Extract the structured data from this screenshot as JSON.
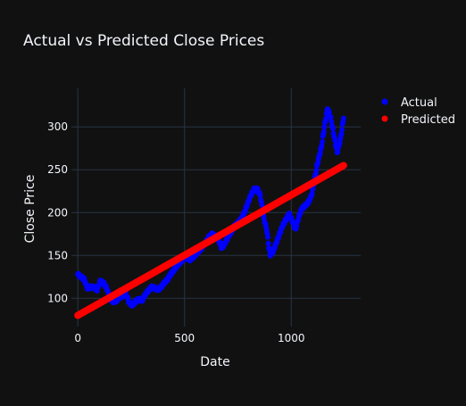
{
  "chart_data": {
    "type": "scatter",
    "title": "Actual vs Predicted Close Prices",
    "xlabel": "Date",
    "ylabel": "Close Price",
    "xlim": [
      -30,
      1325
    ],
    "ylim": [
      67,
      345
    ],
    "x_ticks": [
      0,
      500,
      1000
    ],
    "x_tick_labels": [
      "0",
      "500",
      "1000"
    ],
    "y_ticks": [
      100,
      150,
      200,
      250,
      300
    ],
    "y_tick_labels": [
      "100",
      "150",
      "200",
      "250",
      "300"
    ],
    "grid": true,
    "legend_position": "top-right",
    "colors": {
      "background": "#111111",
      "grid": "#283442",
      "text": "#f2f5fa",
      "actual": "#0000ff",
      "predicted": "#ff0000"
    },
    "series": [
      {
        "name": "Actual",
        "color": "#0000ff",
        "anchors": [
          [
            0,
            128
          ],
          [
            15,
            125
          ],
          [
            30,
            122
          ],
          [
            45,
            112
          ],
          [
            60,
            113
          ],
          [
            75,
            113
          ],
          [
            90,
            110
          ],
          [
            105,
            120
          ],
          [
            120,
            118
          ],
          [
            135,
            112
          ],
          [
            150,
            100
          ],
          [
            165,
            96
          ],
          [
            180,
            97
          ],
          [
            195,
            101
          ],
          [
            210,
            103
          ],
          [
            225,
            106
          ],
          [
            240,
            95
          ],
          [
            255,
            92
          ],
          [
            270,
            96
          ],
          [
            285,
            99
          ],
          [
            300,
            97
          ],
          [
            315,
            104
          ],
          [
            330,
            109
          ],
          [
            345,
            113
          ],
          [
            360,
            112
          ],
          [
            375,
            110
          ],
          [
            390,
            113
          ],
          [
            405,
            118
          ],
          [
            420,
            122
          ],
          [
            435,
            128
          ],
          [
            450,
            133
          ],
          [
            465,
            138
          ],
          [
            480,
            142
          ],
          [
            495,
            146
          ],
          [
            510,
            148
          ],
          [
            525,
            145
          ],
          [
            540,
            148
          ],
          [
            555,
            152
          ],
          [
            570,
            156
          ],
          [
            585,
            160
          ],
          [
            600,
            166
          ],
          [
            615,
            172
          ],
          [
            630,
            175
          ],
          [
            645,
            172
          ],
          [
            660,
            168
          ],
          [
            675,
            158
          ],
          [
            690,
            165
          ],
          [
            705,
            172
          ],
          [
            720,
            178
          ],
          [
            735,
            185
          ],
          [
            750,
            188
          ],
          [
            765,
            192
          ],
          [
            780,
            200
          ],
          [
            795,
            210
          ],
          [
            810,
            220
          ],
          [
            825,
            227
          ],
          [
            840,
            228
          ],
          [
            855,
            220
          ],
          [
            870,
            195
          ],
          [
            885,
            180
          ],
          [
            900,
            150
          ],
          [
            915,
            155
          ],
          [
            930,
            165
          ],
          [
            945,
            175
          ],
          [
            960,
            185
          ],
          [
            975,
            192
          ],
          [
            990,
            198
          ],
          [
            1005,
            190
          ],
          [
            1020,
            180
          ],
          [
            1035,
            195
          ],
          [
            1050,
            205
          ],
          [
            1065,
            208
          ],
          [
            1080,
            212
          ],
          [
            1095,
            220
          ],
          [
            1110,
            240
          ],
          [
            1125,
            260
          ],
          [
            1140,
            275
          ],
          [
            1155,
            300
          ],
          [
            1170,
            322
          ],
          [
            1185,
            310
          ],
          [
            1200,
            290
          ],
          [
            1215,
            270
          ],
          [
            1230,
            285
          ],
          [
            1245,
            310
          ]
        ]
      },
      {
        "name": "Predicted",
        "color": "#ff0000",
        "line": {
          "x0": 0,
          "y0": 80,
          "x1": 1245,
          "y1": 255
        }
      }
    ]
  }
}
